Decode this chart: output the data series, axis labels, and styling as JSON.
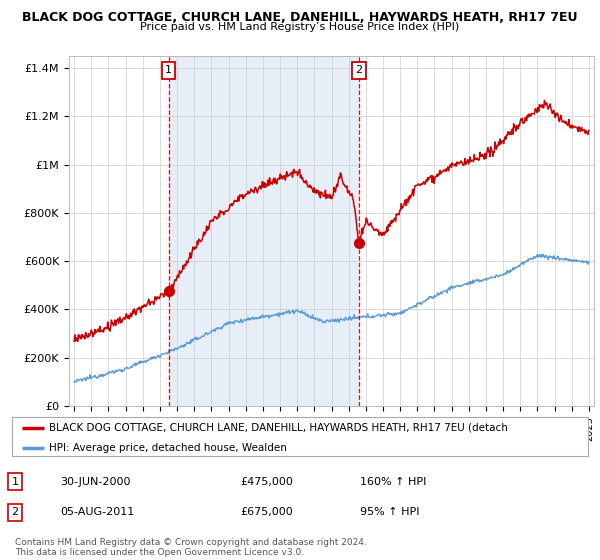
{
  "title": "BLACK DOG COTTAGE, CHURCH LANE, DANEHILL, HAYWARDS HEATH, RH17 7EU",
  "subtitle": "Price paid vs. HM Land Registry’s House Price Index (HPI)",
  "ylabel_ticks": [
    "£0",
    "£200K",
    "£400K",
    "£600K",
    "£800K",
    "£1M",
    "£1.2M",
    "£1.4M"
  ],
  "ytick_vals": [
    0,
    200000,
    400000,
    600000,
    800000,
    1000000,
    1200000,
    1400000
  ],
  "ylim": [
    0,
    1450000
  ],
  "sale1_date": 2000.5,
  "sale1_price": 475000,
  "sale1_label": "30-JUN-2000",
  "sale1_hpi": "160% ↑ HPI",
  "sale2_date": 2011.58,
  "sale2_price": 675000,
  "sale2_label": "05-AUG-2011",
  "sale2_hpi": "95% ↑ HPI",
  "legend_red": "BLACK DOG COTTAGE, CHURCH LANE, DANEHILL, HAYWARDS HEATH, RH17 7EU (detach",
  "legend_blue": "HPI: Average price, detached house, Wealden",
  "footnote": "Contains HM Land Registry data © Crown copyright and database right 2024.\nThis data is licensed under the Open Government Licence v3.0.",
  "red_color": "#cc0000",
  "blue_color": "#5b9bd5",
  "shade_color": "#dce9f5",
  "vline_color": "#cc0000",
  "background_chart": "#ffffff",
  "background_fig": "#ffffff",
  "grid_color": "#cccccc",
  "xmin": 1995,
  "xmax": 2025
}
